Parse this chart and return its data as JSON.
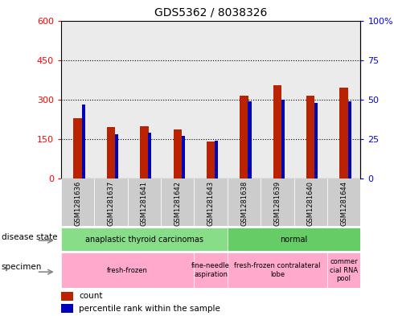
{
  "title": "GDS5362 / 8038326",
  "samples": [
    "GSM1281636",
    "GSM1281637",
    "GSM1281641",
    "GSM1281642",
    "GSM1281643",
    "GSM1281638",
    "GSM1281639",
    "GSM1281640",
    "GSM1281644"
  ],
  "counts": [
    230,
    195,
    200,
    185,
    140,
    315,
    355,
    315,
    345
  ],
  "percentiles": [
    47,
    28,
    29,
    27,
    24,
    49,
    50,
    48,
    49
  ],
  "left_ylim": [
    0,
    600
  ],
  "right_ylim": [
    0,
    100
  ],
  "left_yticks": [
    0,
    150,
    300,
    450,
    600
  ],
  "right_yticks": [
    0,
    25,
    50,
    75,
    100
  ],
  "right_yticklabels": [
    "0",
    "25",
    "50",
    "75",
    "100%"
  ],
  "bar_color": "#BB2200",
  "blue_color": "#0000BB",
  "plot_bg": "#EBEBEB",
  "disease_groups": [
    {
      "label": "anaplastic thyroid carcinomas",
      "start": 0,
      "end": 5,
      "color": "#88DD88"
    },
    {
      "label": "normal",
      "start": 5,
      "end": 9,
      "color": "#66CC66"
    }
  ],
  "specimen_groups": [
    {
      "label": "fresh-frozen",
      "start": 0,
      "end": 4,
      "color": "#FFAACC"
    },
    {
      "label": "fine-needle\naspiration",
      "start": 4,
      "end": 5,
      "color": "#FFAACC"
    },
    {
      "label": "fresh-frozen contralateral\nlobe",
      "start": 5,
      "end": 8,
      "color": "#FFAACC"
    },
    {
      "label": "commer\ncial RNA\npool",
      "start": 8,
      "end": 9,
      "color": "#FFAACC"
    }
  ],
  "legend_count_label": "count",
  "legend_pct_label": "percentile rank within the sample",
  "label_disease": "disease state",
  "label_specimen": "specimen"
}
